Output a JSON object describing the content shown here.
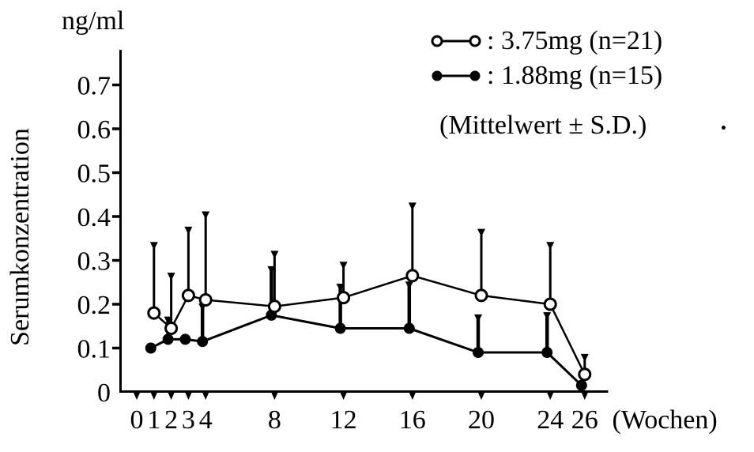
{
  "figure": {
    "background": "#ffffff",
    "ink": "#000000",
    "y_unit": "ng/ml",
    "y_axis_title": "Serumkonzentration"
  },
  "legend": {
    "items": [
      {
        "marker": "open-circle",
        "label": ": 3.75mg (n=21)"
      },
      {
        "marker": "filled-circle",
        "label": ": 1.88mg (n=15)"
      }
    ],
    "note": "(Mittelwert ± S.D.)"
  },
  "chart_data": {
    "type": "line",
    "title": "",
    "xlabel": "(Wochen)",
    "ylabel": "Serumkonzentration (ng/ml)",
    "grid": false,
    "legend_position": "top-right",
    "error_bars": "upward SD whiskers with downward arrowhead caps",
    "xlim": [
      0,
      27.5
    ],
    "ylim": [
      0,
      0.78
    ],
    "x_ticks": [
      0,
      1,
      2,
      3,
      4,
      8,
      12,
      16,
      20,
      24,
      26
    ],
    "x_tick_labels": [
      "0",
      "1",
      "2",
      "3",
      "4",
      "8",
      "12",
      "16",
      "20",
      "24",
      "26"
    ],
    "y_ticks": [
      0,
      0.1,
      0.2,
      0.3,
      0.4,
      0.5,
      0.6,
      0.7
    ],
    "y_tick_labels": [
      "0",
      "0.1",
      "0.2",
      "0.3",
      "0.4",
      "0.5",
      "0.6",
      "0.7"
    ],
    "x": [
      1,
      2,
      3,
      4,
      8,
      12,
      16,
      20,
      24,
      26
    ],
    "series": [
      {
        "name": "3.75mg (n=21)",
        "marker": "open-circle",
        "mean": [
          0.18,
          0.145,
          0.22,
          0.21,
          0.195,
          0.215,
          0.265,
          0.22,
          0.2,
          0.04
        ],
        "sd_top": [
          0.34,
          0.27,
          0.375,
          0.41,
          0.32,
          0.295,
          0.43,
          0.37,
          0.34,
          0.085
        ]
      },
      {
        "name": "1.88mg (n=15)",
        "marker": "filled-circle",
        "mean": [
          0.1,
          0.12,
          0.12,
          0.115,
          0.175,
          0.145,
          0.145,
          0.09,
          0.09,
          0.015
        ],
        "sd_top": [
          null,
          0.17,
          null,
          0.2,
          0.285,
          0.245,
          0.25,
          0.175,
          0.18,
          null
        ]
      }
    ]
  }
}
